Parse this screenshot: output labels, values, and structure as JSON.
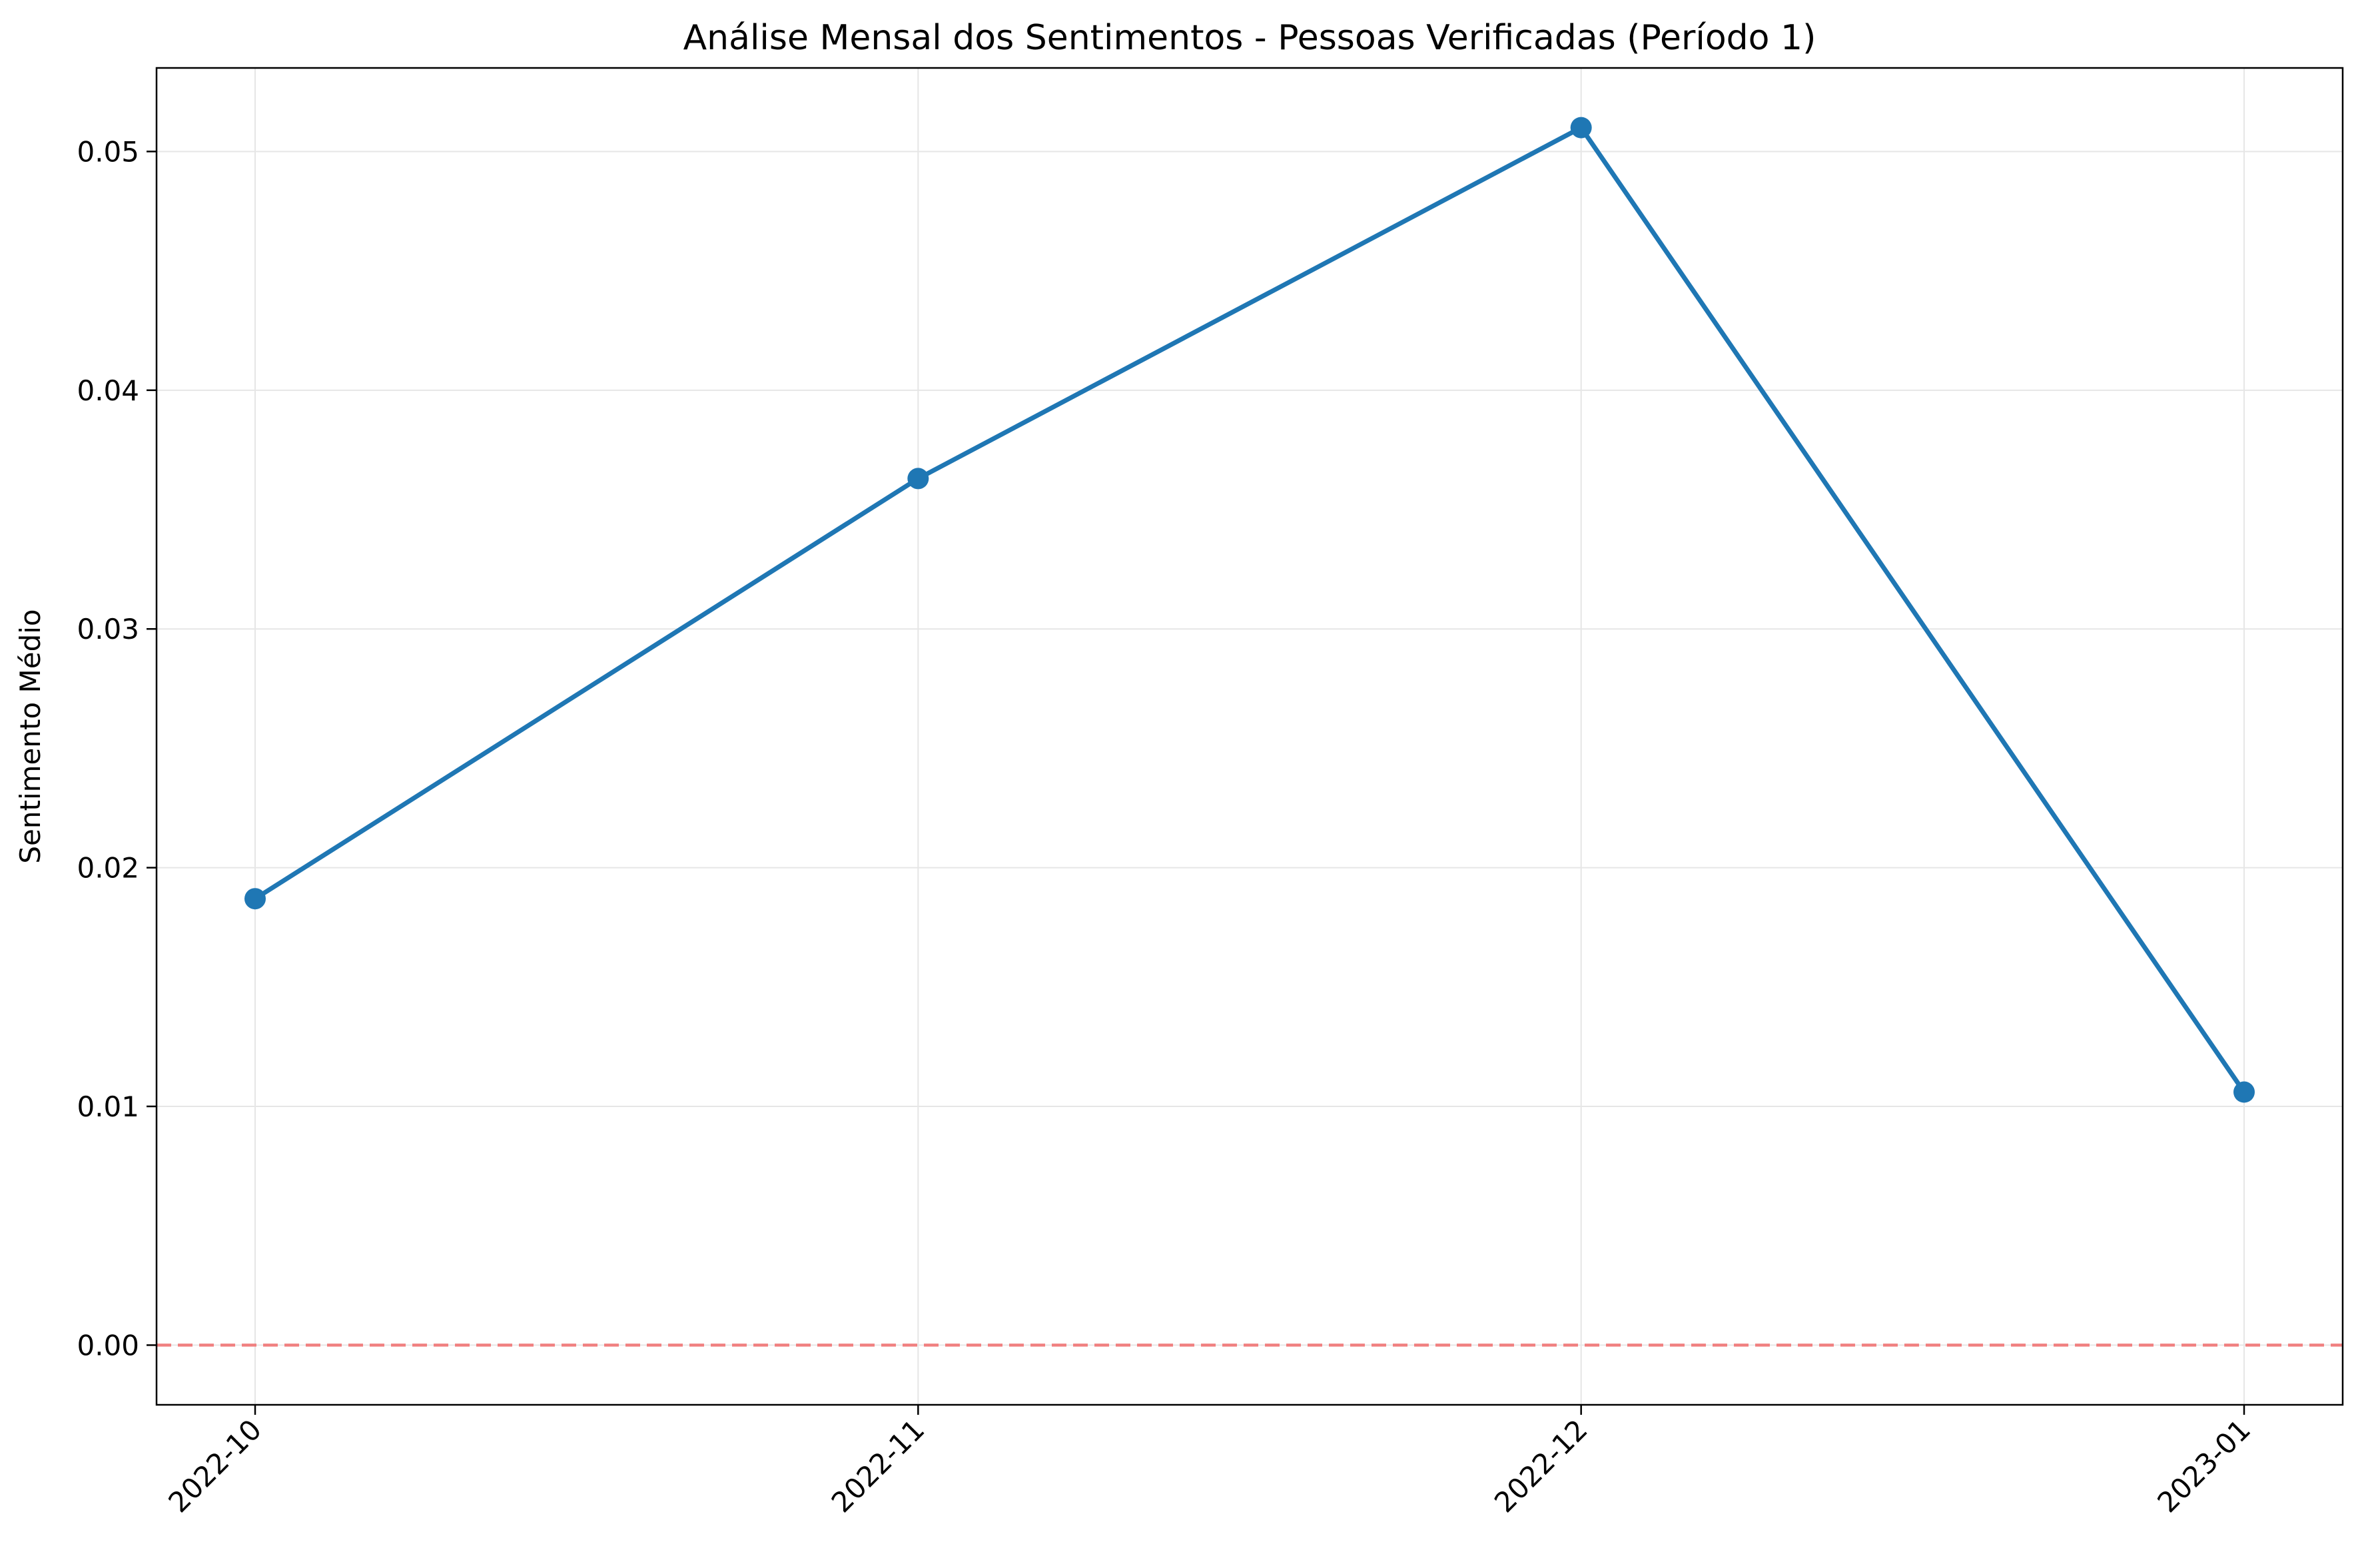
{
  "chart_data": {
    "type": "line",
    "title": "Análise Mensal dos Sentimentos - Pessoas Verificadas (Período 1)",
    "xlabel": "",
    "ylabel": "Sentimento Médio",
    "categories": [
      "2022-10",
      "2022-11",
      "2022-12",
      "2023-01"
    ],
    "series": [
      {
        "values": [
          0.0187,
          0.0363,
          0.051,
          0.0106
        ],
        "color": "#1f77b4"
      }
    ],
    "ylim": [
      -0.0025,
      0.0535
    ],
    "yticks": [
      0.0,
      0.01,
      0.02,
      0.03,
      0.04,
      0.05
    ],
    "ytick_labels": [
      "0.00",
      "0.01",
      "0.02",
      "0.03",
      "0.04",
      "0.05"
    ],
    "xtick_rotation": 45,
    "grid": true,
    "reference_line": {
      "y": 0,
      "color": "#f08080",
      "style": "dashed"
    }
  }
}
